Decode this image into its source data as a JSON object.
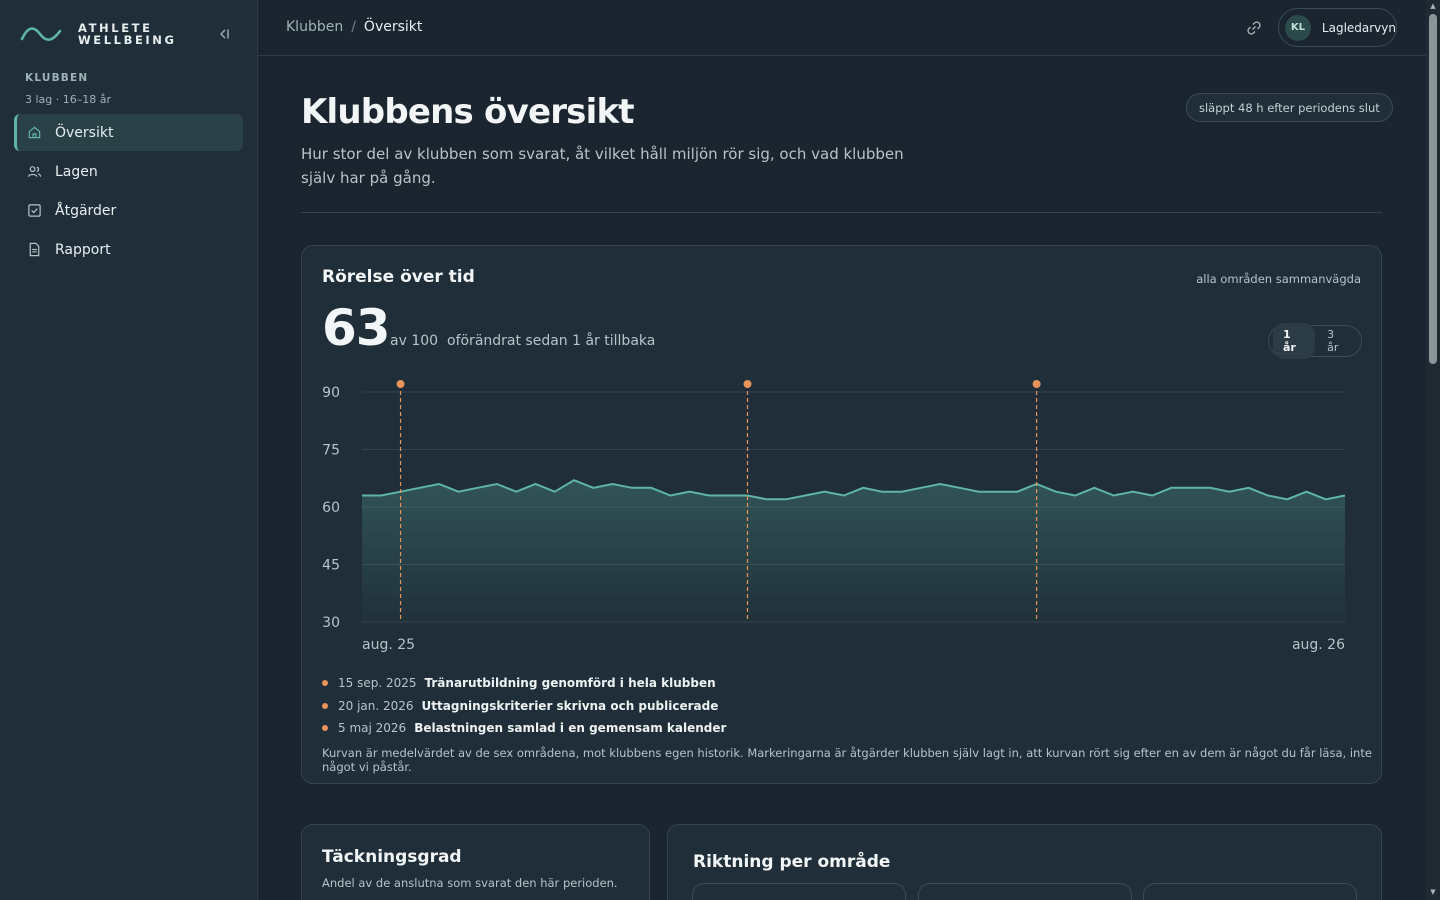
{
  "brand": {
    "line1": "ATHLETE",
    "line2": "WELLBEING"
  },
  "sidebar": {
    "section_label": "KLUBBEN",
    "section_sub": "3 lag · 16–18 år",
    "items": [
      {
        "label": "Översikt",
        "icon": "home-icon",
        "active": true
      },
      {
        "label": "Lagen",
        "icon": "users-icon",
        "active": false
      },
      {
        "label": "Åtgärder",
        "icon": "checkbox-icon",
        "active": false
      },
      {
        "label": "Rapport",
        "icon": "document-icon",
        "active": false
      }
    ]
  },
  "topbar": {
    "breadcrumb": [
      "Klubben",
      "Översikt"
    ],
    "separator": "/",
    "user_initials": "KL",
    "user_view": "Lagledarvyn"
  },
  "page": {
    "title": "Klubbens översikt",
    "description": "Hur stor del av klubben som svarat, åt vilket håll miljön rör sig, och vad klubben själv har på gång.",
    "release_note": "släppt 48 h efter periodens slut"
  },
  "trend": {
    "title": "Rörelse över tid",
    "meta": "alla områden sammanvägda",
    "score": "63",
    "score_of": "av 100",
    "change": "oförändrat sedan 1 år tillbaka",
    "ranges": [
      "1 år",
      "3 år"
    ],
    "active_range": "1 år",
    "events": [
      {
        "date": "15 sep. 2025",
        "text": "Tränarutbildning genomförd i hela klubben"
      },
      {
        "date": "20 jan. 2026",
        "text": "Uttagningskriterier skrivna och publicerade"
      },
      {
        "date": "5 maj 2026",
        "text": "Belastningen samlad i en gemensam kalender"
      }
    ],
    "footnote": "Kurvan är medelvärdet av de sex områdena, mot klubbens egen historik. Markeringarna är åtgärder klubben själv lagt in, att kurvan rört sig efter en av dem är något du får läsa, inte något vi påstår."
  },
  "chart_data": {
    "type": "area",
    "ylim": [
      30,
      90
    ],
    "yticks": [
      90,
      75,
      60,
      45,
      30
    ],
    "x_start_label": "aug. 25",
    "x_end_label": "aug. 26",
    "values": [
      63,
      63,
      64,
      65,
      66,
      64,
      65,
      66,
      64,
      66,
      64,
      67,
      65,
      66,
      65,
      65,
      63,
      64,
      63,
      63,
      63,
      62,
      62,
      63,
      64,
      63,
      65,
      64,
      64,
      65,
      66,
      65,
      64,
      64,
      64,
      66,
      64,
      63,
      65,
      63,
      64,
      63,
      65,
      65,
      65,
      64,
      65,
      63,
      62,
      64,
      62,
      63
    ],
    "event_indices": [
      2,
      20,
      35
    ],
    "colors": {
      "line": "#5fb5a6",
      "marker": "#e8935a",
      "grid": "#34444e"
    }
  },
  "coverage": {
    "title": "Täckningsgrad",
    "subtitle": "Andel av de anslutna som svarat den här perioden."
  },
  "direction": {
    "title": "Riktning per område"
  }
}
